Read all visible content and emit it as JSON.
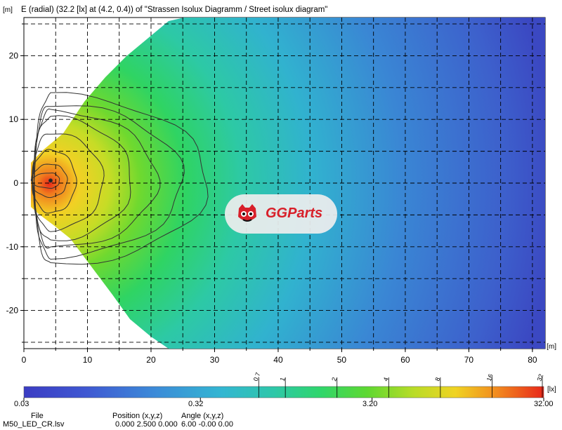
{
  "header": {
    "title": "E (radial) (32.2 [lx] at (4.2, 0.4)) of \"Strassen Isolux Diagramm / Street isolux diagram\"",
    "y_unit": "[m]",
    "x_unit": "[m]"
  },
  "chart_data": {
    "type": "heatmap",
    "title": "E (radial) (32.2 [lx] at (4.2, 0.4)) of \"Strassen Isolux Diagramm / Street isolux diagram\"",
    "xlabel": "[m]",
    "ylabel": "[m]",
    "xlim": [
      0,
      82
    ],
    "ylim": [
      -26,
      26
    ],
    "xticks": [
      0,
      10,
      20,
      30,
      40,
      50,
      60,
      70,
      80
    ],
    "yticks": [
      -20,
      -10,
      0,
      10,
      20
    ],
    "grid": true,
    "peak": {
      "value": 32.2,
      "unit": "lx",
      "x": 4.2,
      "y": 0.4
    },
    "contour_levels": [
      0.7,
      1,
      2,
      4,
      8,
      16,
      32
    ],
    "colorbar": {
      "scale": "log",
      "min": 0.03,
      "max": 32.0,
      "labels": [
        "0.03",
        "0.32",
        "3.20",
        "32.00"
      ],
      "top_labels": [
        "0.7",
        "1",
        "2",
        "4",
        "8",
        "16",
        "32"
      ],
      "unit": "[lx]"
    }
  },
  "footer": {
    "file_label": "File",
    "file_value": "M50_LED_CR.lsv",
    "position_label": "Position (x,y,z)",
    "position_value": "0.000  2.500  0.000",
    "angle_label": "Angle (x,y,z)",
    "angle_value": "6.00  -0.00  0.00"
  },
  "watermark": {
    "text": "GGParts",
    "color": "#d8202a",
    "icon": "red-mascot-logo"
  },
  "colors": {
    "background": "#ffffff",
    "grid": "#000000",
    "low": "#3a3cc0",
    "high": "#e8301a"
  }
}
